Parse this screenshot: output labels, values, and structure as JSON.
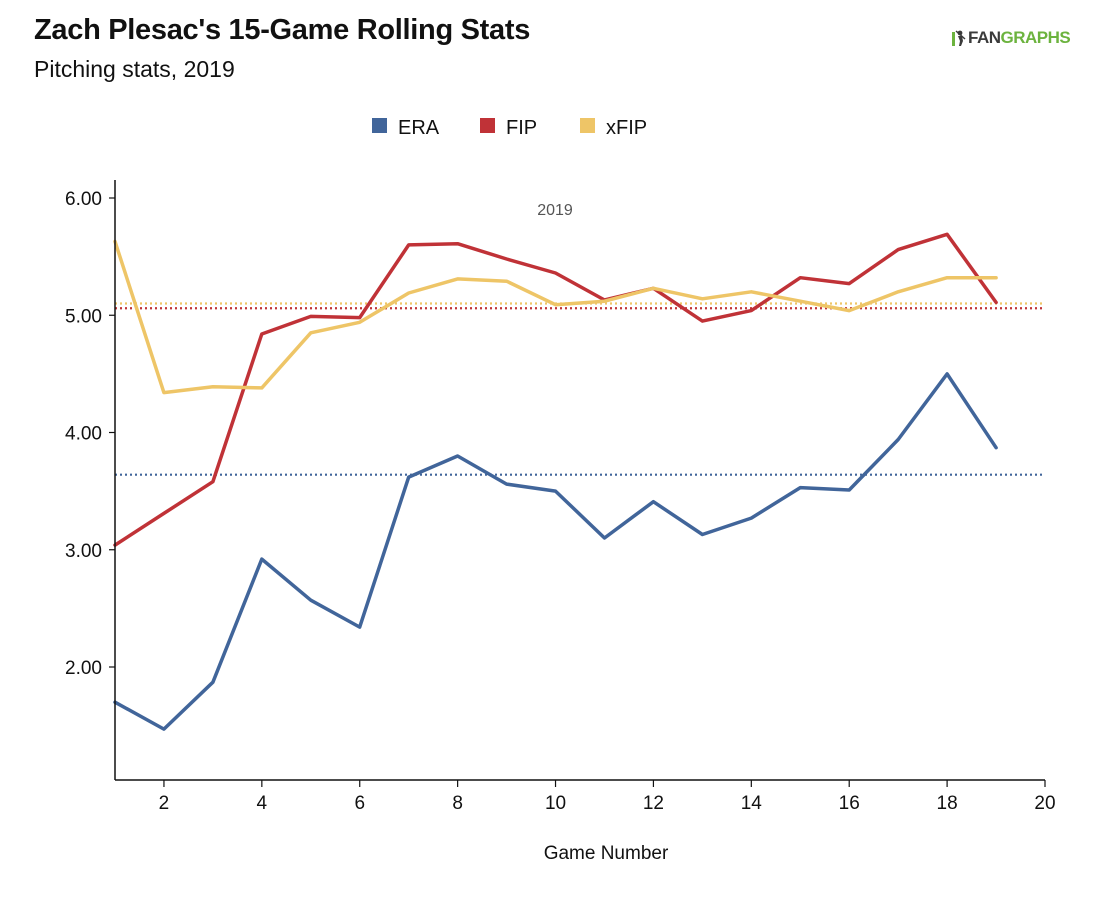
{
  "header": {
    "title": "Zach Plesac's 15-Game Rolling Stats",
    "subtitle": "Pitching stats, 2019"
  },
  "brand": {
    "part1": "FAN",
    "part2": "GRAPHS",
    "colors": {
      "fan": "#3b3b3b",
      "graphs": "#6cb33e"
    }
  },
  "chart_data": {
    "type": "line",
    "title": "Zach Plesac's 15-Game Rolling Stats",
    "subtitle": "Pitching stats, 2019",
    "xlabel": "Game Number",
    "ylabel": "",
    "xlim": [
      1,
      20
    ],
    "ylim": [
      1.0,
      6.15
    ],
    "x_ticks": [
      2,
      4,
      6,
      8,
      10,
      12,
      14,
      16,
      18,
      20
    ],
    "y_ticks": [
      2.0,
      3.0,
      4.0,
      5.0,
      6.0
    ],
    "y_tick_format": "fixed2",
    "grid": false,
    "legend_position": "top-center",
    "annotation": "2019",
    "x": [
      1,
      2,
      3,
      4,
      5,
      6,
      7,
      8,
      9,
      10,
      11,
      12,
      13,
      14,
      15,
      16,
      17,
      18,
      19
    ],
    "series": [
      {
        "name": "ERA",
        "color": "#41659a",
        "values": [
          1.7,
          1.47,
          1.87,
          2.92,
          2.57,
          2.34,
          3.62,
          3.8,
          3.56,
          3.5,
          3.1,
          3.41,
          3.13,
          3.27,
          3.53,
          3.51,
          3.94,
          4.5,
          3.87
        ],
        "average": 3.64
      },
      {
        "name": "FIP",
        "color": "#c03237",
        "values": [
          3.04,
          3.31,
          3.58,
          4.84,
          4.99,
          4.98,
          5.6,
          5.61,
          5.48,
          5.36,
          5.13,
          5.23,
          4.95,
          5.04,
          5.32,
          5.27,
          5.56,
          5.69,
          5.11
        ],
        "average": 5.06
      },
      {
        "name": "xFIP",
        "color": "#eec567",
        "values": [
          5.63,
          4.34,
          4.39,
          4.38,
          4.85,
          4.94,
          5.19,
          5.31,
          5.29,
          5.09,
          5.12,
          5.23,
          5.14,
          5.2,
          5.12,
          5.04,
          5.2,
          5.32,
          5.32
        ],
        "average": 5.1
      }
    ]
  }
}
